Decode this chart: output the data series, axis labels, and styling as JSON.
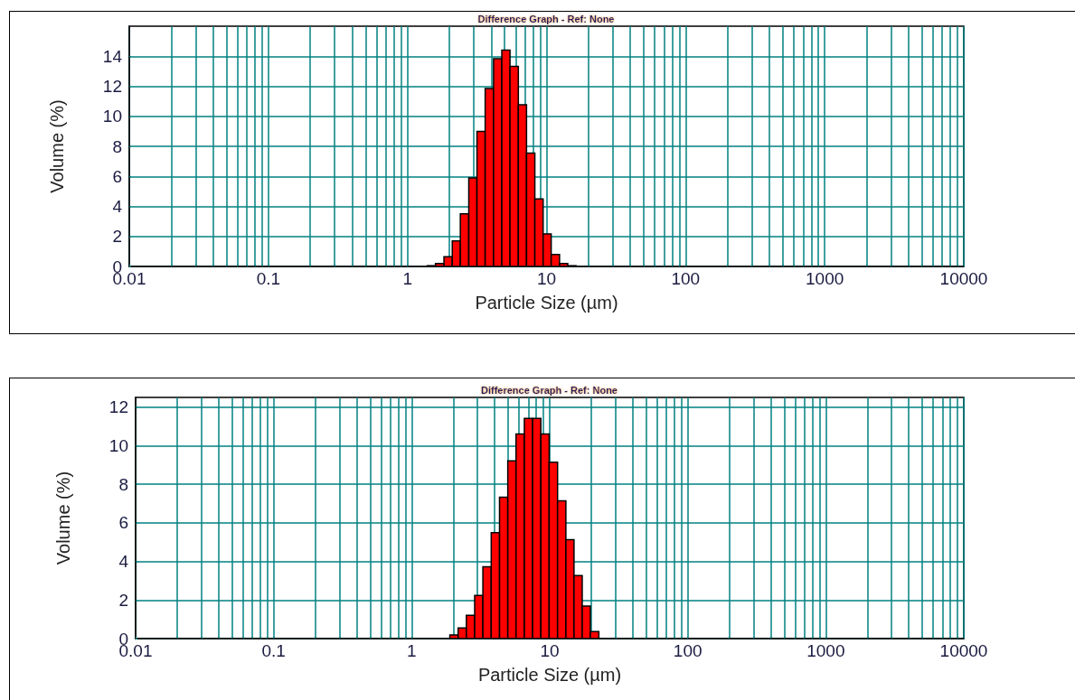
{
  "chart_data": [
    {
      "type": "histogram",
      "title": "Difference Graph - Ref: None",
      "xlabel": "Particle Size (µm)",
      "ylabel": "Volume (%)",
      "log": "x",
      "grid": true,
      "bins": [
        1.39,
        1.59,
        1.83,
        2.1,
        2.4,
        2.76,
        3.16,
        3.62,
        4.16,
        4.77,
        5.46,
        6.27,
        7.18,
        8.24,
        9.45,
        10.8,
        12.4,
        14.2,
        16.3
      ],
      "values": [
        0.05,
        0.2,
        0.65,
        1.7,
        3.5,
        5.9,
        9.0,
        11.85,
        13.83,
        14.4,
        13.33,
        10.77,
        7.55,
        4.5,
        2.17,
        0.8,
        0.2,
        0.05
      ],
      "color": "#ff0000",
      "xlim": [
        0.01,
        10000
      ],
      "xticks": [
        0.01,
        {
          "value": 0.02,
          "label": null
        },
        {
          "value": 0.03,
          "label": null
        },
        {
          "value": 0.04,
          "label": null
        },
        {
          "value": 0.05,
          "label": null
        },
        {
          "value": 0.06,
          "label": null
        },
        {
          "value": 0.07,
          "label": null
        },
        {
          "value": 0.08,
          "label": null
        },
        {
          "value": 0.09,
          "label": null
        },
        0.1,
        {
          "value": 0.2,
          "label": null
        },
        {
          "value": 0.3,
          "label": null
        },
        {
          "value": 0.4,
          "label": null
        },
        {
          "value": 0.5,
          "label": null
        },
        {
          "value": 0.6,
          "label": null
        },
        {
          "value": 0.7,
          "label": null
        },
        {
          "value": 0.8,
          "label": null
        },
        {
          "value": 0.9,
          "label": null
        },
        1,
        {
          "value": 2,
          "label": null
        },
        {
          "value": 3,
          "label": null
        },
        {
          "value": 4,
          "label": null
        },
        {
          "value": 5,
          "label": null
        },
        {
          "value": 6,
          "label": null
        },
        {
          "value": 7,
          "label": null
        },
        {
          "value": 8,
          "label": null
        },
        {
          "value": 9,
          "label": null
        },
        10,
        {
          "value": 20,
          "label": null
        },
        {
          "value": 30,
          "label": null
        },
        {
          "value": 40,
          "label": null
        },
        {
          "value": 50,
          "label": null
        },
        {
          "value": 60,
          "label": null
        },
        {
          "value": 70,
          "label": null
        },
        {
          "value": 80,
          "label": null
        },
        {
          "value": 90,
          "label": null
        },
        100,
        {
          "value": 200,
          "label": null
        },
        {
          "value": 300,
          "label": null
        },
        {
          "value": 400,
          "label": null
        },
        {
          "value": 500,
          "label": null
        },
        {
          "value": 600,
          "label": null
        },
        {
          "value": 700,
          "label": null
        },
        {
          "value": 800,
          "label": null
        },
        {
          "value": 900,
          "label": null
        },
        1000,
        {
          "value": 2000,
          "label": null
        },
        {
          "value": 3000,
          "label": null
        },
        {
          "value": 4000,
          "label": null
        },
        {
          "value": 5000,
          "label": null
        },
        {
          "value": 6000,
          "label": null
        },
        {
          "value": 7000,
          "label": null
        },
        {
          "value": 8000,
          "label": null
        },
        {
          "value": 9000,
          "label": null
        },
        10000
      ],
      "ylim": [
        0,
        16
      ],
      "yticks": [
        0,
        2,
        4,
        6,
        8,
        10,
        12,
        14
      ]
    },
    {
      "type": "histogram",
      "title": "Difference Graph - Ref: None",
      "xlabel": "Particle Size (µm)",
      "ylabel": "Volume (%)",
      "log": "x",
      "grid": true,
      "bins": [
        1.89,
        2.17,
        2.49,
        2.86,
        3.28,
        3.77,
        4.33,
        4.97,
        5.7,
        6.55,
        7.52,
        8.63,
        9.91,
        11.4,
        13.1,
        15.0,
        17.2,
        19.7,
        22.7
      ],
      "values": [
        0.19,
        0.55,
        1.21,
        2.23,
        3.72,
        5.49,
        7.33,
        9.21,
        10.6,
        11.41,
        11.41,
        10.6,
        9.14,
        7.14,
        5.13,
        3.27,
        1.68,
        0.36
      ],
      "color": "#ff0000",
      "xlim": [
        0.01,
        10000
      ],
      "xticks": [
        0.01,
        {
          "value": 0.02,
          "label": null
        },
        {
          "value": 0.03,
          "label": null
        },
        {
          "value": 0.04,
          "label": null
        },
        {
          "value": 0.05,
          "label": null
        },
        {
          "value": 0.06,
          "label": null
        },
        {
          "value": 0.07,
          "label": null
        },
        {
          "value": 0.08,
          "label": null
        },
        {
          "value": 0.09,
          "label": null
        },
        0.1,
        {
          "value": 0.2,
          "label": null
        },
        {
          "value": 0.3,
          "label": null
        },
        {
          "value": 0.4,
          "label": null
        },
        {
          "value": 0.5,
          "label": null
        },
        {
          "value": 0.6,
          "label": null
        },
        {
          "value": 0.7,
          "label": null
        },
        {
          "value": 0.8,
          "label": null
        },
        {
          "value": 0.9,
          "label": null
        },
        1,
        {
          "value": 2,
          "label": null
        },
        {
          "value": 3,
          "label": null
        },
        {
          "value": 4,
          "label": null
        },
        {
          "value": 5,
          "label": null
        },
        {
          "value": 6,
          "label": null
        },
        {
          "value": 7,
          "label": null
        },
        {
          "value": 8,
          "label": null
        },
        {
          "value": 9,
          "label": null
        },
        10,
        {
          "value": 20,
          "label": null
        },
        {
          "value": 30,
          "label": null
        },
        {
          "value": 40,
          "label": null
        },
        {
          "value": 50,
          "label": null
        },
        {
          "value": 60,
          "label": null
        },
        {
          "value": 70,
          "label": null
        },
        {
          "value": 80,
          "label": null
        },
        {
          "value": 90,
          "label": null
        },
        100,
        {
          "value": 200,
          "label": null
        },
        {
          "value": 300,
          "label": null
        },
        {
          "value": 400,
          "label": null
        },
        {
          "value": 500,
          "label": null
        },
        {
          "value": 600,
          "label": null
        },
        {
          "value": 700,
          "label": null
        },
        {
          "value": 800,
          "label": null
        },
        {
          "value": 900,
          "label": null
        },
        1000,
        {
          "value": 2000,
          "label": null
        },
        {
          "value": 3000,
          "label": null
        },
        {
          "value": 4000,
          "label": null
        },
        {
          "value": 5000,
          "label": null
        },
        {
          "value": 6000,
          "label": null
        },
        {
          "value": 7000,
          "label": null
        },
        {
          "value": 8000,
          "label": null
        },
        {
          "value": 9000,
          "label": null
        },
        10000
      ],
      "ylim": [
        0,
        12.5
      ],
      "yticks": [
        0,
        2,
        4,
        6,
        8,
        10,
        12
      ]
    }
  ]
}
